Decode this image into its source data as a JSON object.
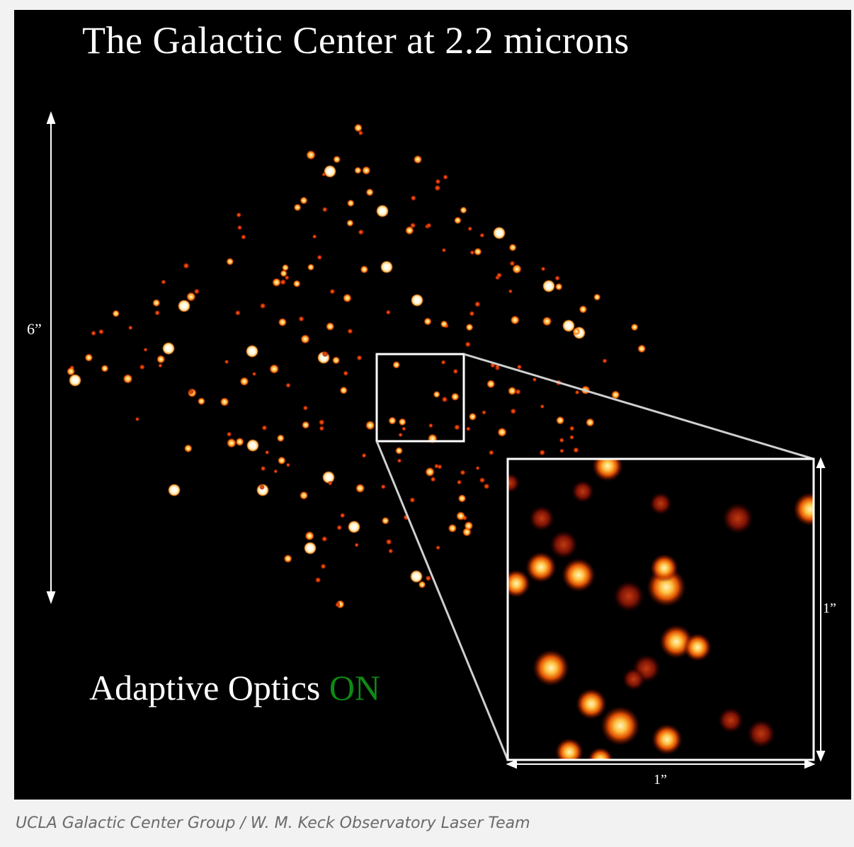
{
  "figure": {
    "title": "The Galactic Center at 2.2 microns",
    "ao_label": "Adaptive Optics",
    "ao_state": "ON",
    "ao_state_color": "#0f8a14",
    "scale_vertical": "6”",
    "scale_inset_x": "1”",
    "scale_inset_y": "1”"
  },
  "caption": "UCLA Galactic Center Group / W. M. Keck Observatory Laser Team"
}
